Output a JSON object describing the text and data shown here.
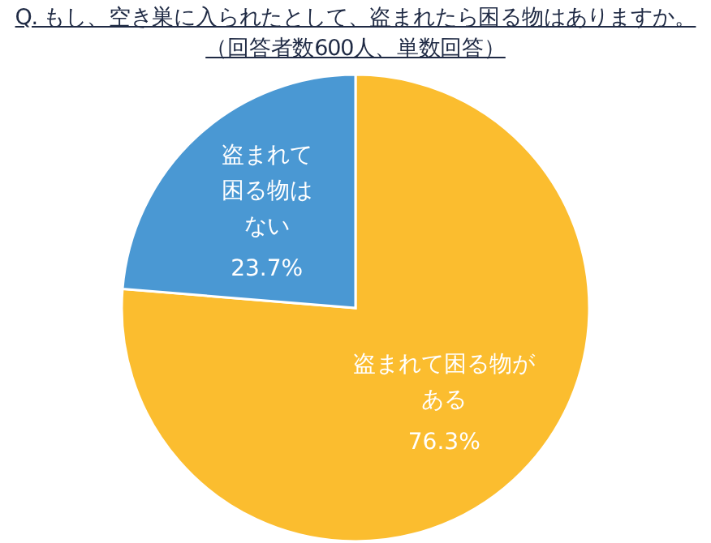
{
  "chart_data": {
    "type": "pie",
    "title": "Q. もし、空き巣に入られたとして、盗まれたら困る物はありますか。",
    "subtitle": "（回答者数600人、単数回答）",
    "categories": [
      "盗まれて困る物がある",
      "盗まれて困る物はない"
    ],
    "values": [
      76.3,
      23.7
    ],
    "colors": [
      "#fbbd2f",
      "#4a98d3"
    ],
    "value_labels": [
      "76.3%",
      "23.7%"
    ],
    "legend": false
  }
}
